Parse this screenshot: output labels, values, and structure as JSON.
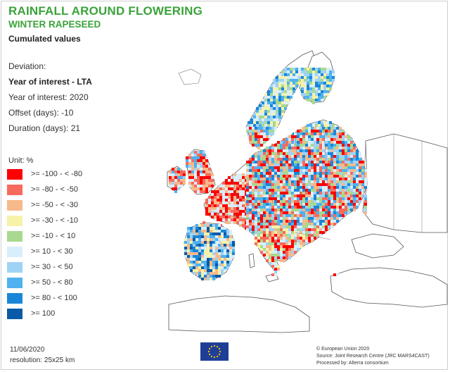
{
  "header": {
    "title": "RAINFALL AROUND FLOWERING",
    "subtitle": "WINTER RAPESEED",
    "cumulated": "Cumulated values"
  },
  "params": {
    "deviation_label": "Deviation:",
    "mode": "Year of interest - LTA",
    "year_of_interest": "Year of interest: 2020",
    "offset": "Offset (days): -10",
    "duration": "Duration (days): 21"
  },
  "legend": {
    "unit": "Unit:  %",
    "items": [
      {
        "label": ">= -100 - < -80",
        "color": "#ff0000"
      },
      {
        "label": ">= -80 - < -50",
        "color": "#f86a5c"
      },
      {
        "label": ">= -50 - < -30",
        "color": "#f8b98a"
      },
      {
        "label": ">= -30 - < -10",
        "color": "#f6f2a8"
      },
      {
        "label": ">= -10 - < 10",
        "color": "#a8d98f"
      },
      {
        "label": ">= 10 - < 30",
        "color": "#d9eefb"
      },
      {
        "label": ">= 30 - < 50",
        "color": "#9fd3f5"
      },
      {
        "label": ">= 50 - < 80",
        "color": "#4fb1ef"
      },
      {
        "label": ">= 80 - < 100",
        "color": "#1a86d8"
      },
      {
        "label": ">= 100",
        "color": "#0a5aa8"
      }
    ]
  },
  "footer": {
    "date": "11/06/2020",
    "resolution": "resolution:  25x25 km",
    "credits": [
      "© European Union 2020",
      "Source: Joint Research Centre (JRC MARS4CAST)",
      "Processed by: Alterra consortium"
    ]
  },
  "logo": {
    "icon": "eu-flag-icon",
    "colors": {
      "flag_blue": "#1f3f97",
      "stars": "#ffcc00"
    }
  },
  "map": {
    "regions": [
      {
        "name": "uk-ireland",
        "classes": [
          0,
          1,
          2,
          5,
          6,
          7
        ]
      },
      {
        "name": "scandinavia",
        "classes": [
          3,
          4,
          5,
          6,
          7,
          8
        ]
      },
      {
        "name": "france-benelux",
        "classes": [
          0,
          1,
          2,
          5
        ]
      },
      {
        "name": "iberia",
        "classes": [
          2,
          3,
          5,
          6,
          7,
          8,
          9
        ]
      },
      {
        "name": "central-eastern-europe",
        "classes": [
          0,
          1,
          2,
          4,
          5,
          6,
          7,
          8
        ]
      },
      {
        "name": "italy-balkans",
        "classes": [
          0,
          1,
          2,
          3,
          4,
          5,
          6
        ]
      }
    ]
  }
}
